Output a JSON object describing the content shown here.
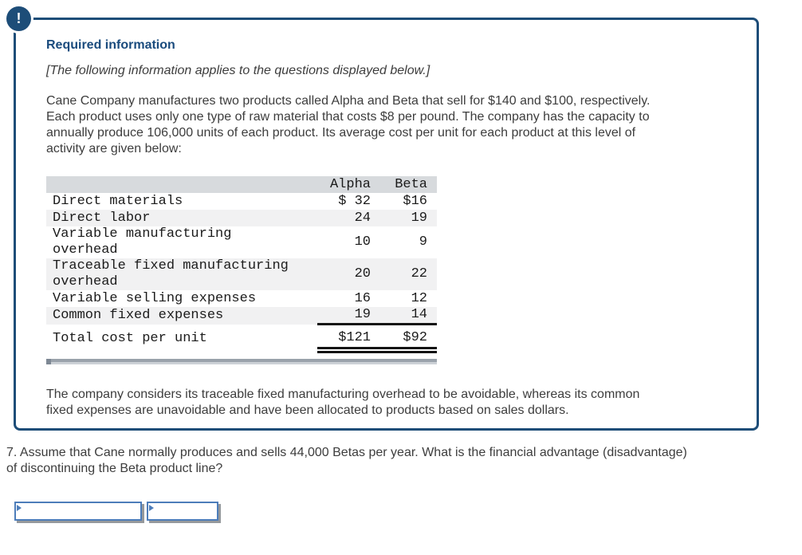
{
  "panel": {
    "alert_glyph": "!",
    "title": "Required information",
    "note": "[The following information applies to the questions displayed below.]",
    "intro": "Cane Company manufactures two products called Alpha and Beta that sell for $140 and $100, respectively.\nEach product uses only one type of raw material that costs $8 per pound. The company has the capacity to\nannually produce 106,000 units of each product. Its average cost per unit for each product at this level of\nactivity are given below:",
    "footer": "The company considers its traceable fixed manufacturing overhead to be avoidable, whereas its common\nfixed expenses are unavoidable and have been allocated to products based on sales dollars."
  },
  "cost_table": {
    "columns": [
      "",
      "Alpha",
      "Beta"
    ],
    "rows": [
      {
        "label": "Direct materials",
        "alpha": "$ 32",
        "beta": "$16",
        "underline": "none"
      },
      {
        "label": "Direct labor",
        "alpha": "24",
        "beta": "19",
        "underline": "none"
      },
      {
        "label": "Variable manufacturing\noverhead",
        "alpha": "10",
        "beta": "9",
        "underline": "none"
      },
      {
        "label": "Traceable fixed manufacturing\noverhead",
        "alpha": "20",
        "beta": "22",
        "underline": "none"
      },
      {
        "label": "Variable selling expenses",
        "alpha": "16",
        "beta": "12",
        "underline": "none"
      },
      {
        "label": "Common fixed expenses",
        "alpha": "19",
        "beta": "14",
        "underline": "single"
      },
      {
        "label": "Total cost per unit",
        "alpha": "$121",
        "beta": "$92",
        "underline": "double"
      }
    ]
  },
  "question": {
    "number": "7.",
    "text": "Assume that Cane normally produces and sells 44,000 Betas per year. What is the financial advantage (disadvantage)\nof discontinuing the Beta product line?"
  },
  "answer": {
    "cells": [
      {
        "value": "",
        "placeholder": ""
      },
      {
        "value": "",
        "placeholder": ""
      }
    ]
  },
  "colors": {
    "panel_border": "#1d4d78",
    "title_text": "#1a4b7d",
    "body_text": "#3d3d3d",
    "table_header_bg": "#d7dadd",
    "table_stripe_bg": "#f1f1f2",
    "input_border": "#4d7dba",
    "input_shadow": "#96999c",
    "scrollbar_dark": "#9aa2ab",
    "scrollbar_light": "#ccd1d6"
  }
}
